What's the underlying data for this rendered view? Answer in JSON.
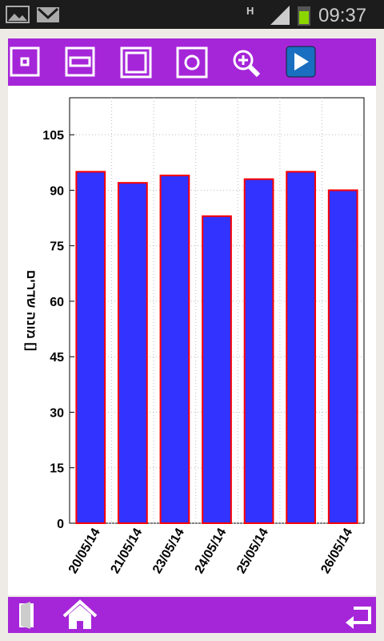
{
  "status_bar": {
    "time": "09:37",
    "network": "H"
  },
  "chart_data": {
    "type": "bar",
    "y_label": "מונה שדרים []",
    "categories": [
      "20/05/14",
      "21/05/14",
      "23/05/14",
      "24/05/14",
      "25/05/14",
      null,
      "26/05/14"
    ],
    "values": [
      95,
      92,
      94,
      83,
      93,
      95,
      90
    ],
    "color": "#3333ff",
    "edge_color": "#ff0000",
    "ylim": [
      0,
      115
    ],
    "yticks": [
      0,
      15,
      30,
      45,
      60,
      75,
      90,
      105
    ],
    "grid": true
  }
}
